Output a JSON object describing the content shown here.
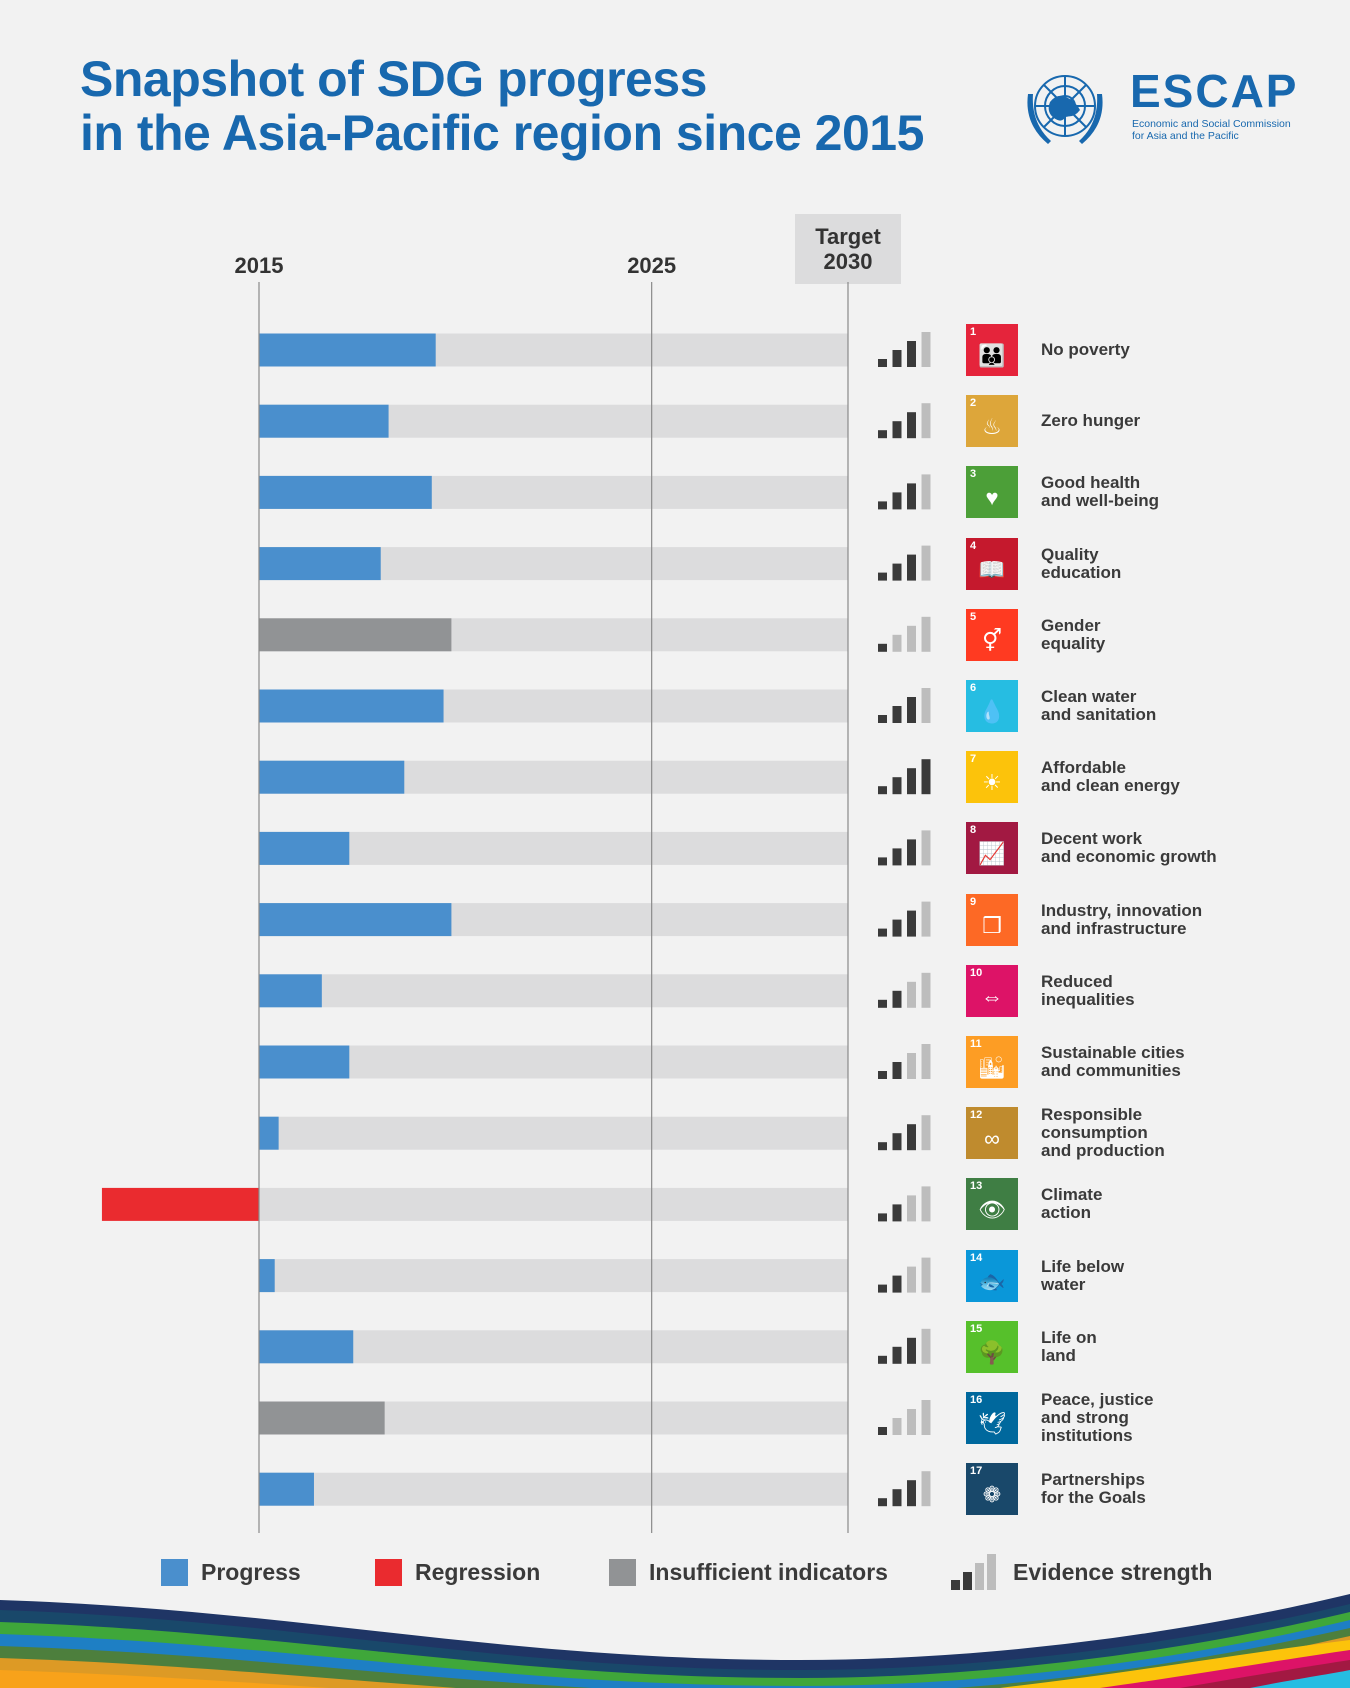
{
  "header": {
    "title_line1": "Snapshot of SDG progress",
    "title_line2": "in the Asia-Pacific region since 2015",
    "logo": {
      "icon": "un-emblem-icon",
      "name": "ESCAP",
      "sub_line1": "Economic and Social Commission",
      "sub_line2": "for Asia and the Pacific"
    }
  },
  "colors": {
    "title": "#1868ae",
    "progress": "#4a8fcd",
    "regression": "#ea2b2f",
    "insufficient": "#919395",
    "track": "#dcdcdd",
    "evidence_on": "#3a3a3a",
    "evidence_off": "#bdbdbd"
  },
  "legend": {
    "progress": "Progress",
    "regression": "Regression",
    "insufficient": "Insufficient indicators",
    "evidence": "Evidence strength"
  },
  "chart_data": {
    "type": "bar",
    "orientation": "horizontal",
    "title": "Snapshot of SDG progress in the Asia-Pacific region since 2015",
    "x_axis": {
      "min": 2015,
      "max": 2030,
      "ticks": [
        {
          "value": 2015,
          "label": "2015"
        },
        {
          "value": 2025,
          "label": "2025"
        },
        {
          "value": 2030,
          "label_line1": "Target",
          "label_line2": "2030",
          "highlight": true
        }
      ]
    },
    "value_unit": "years of progress achieved since 2015 (negative = regression)",
    "evidence_max": 4,
    "goals": [
      {
        "number": 1,
        "label": [
          "No poverty"
        ],
        "value": 4.5,
        "status": "progress",
        "evidence": 3,
        "color": "#e5243b",
        "icon": "family-icon",
        "glyph": "👪"
      },
      {
        "number": 2,
        "label": [
          "Zero hunger"
        ],
        "value": 3.3,
        "status": "progress",
        "evidence": 3,
        "color": "#dda63a",
        "icon": "food-bowl-icon",
        "glyph": "♨"
      },
      {
        "number": 3,
        "label": [
          "Good health",
          "and well-being"
        ],
        "value": 4.4,
        "status": "progress",
        "evidence": 3,
        "color": "#4c9f38",
        "icon": "heartbeat-icon",
        "glyph": "♥"
      },
      {
        "number": 4,
        "label": [
          "Quality",
          "education"
        ],
        "value": 3.1,
        "status": "progress",
        "evidence": 3,
        "color": "#c5192d",
        "icon": "book-icon",
        "glyph": "📖"
      },
      {
        "number": 5,
        "label": [
          "Gender",
          "equality"
        ],
        "value": 4.9,
        "status": "insufficient",
        "evidence": 1,
        "color": "#ff3a21",
        "icon": "gender-icon",
        "glyph": "⚥"
      },
      {
        "number": 6,
        "label": [
          "Clean water",
          "and sanitation"
        ],
        "value": 4.7,
        "status": "progress",
        "evidence": 3,
        "color": "#26bde2",
        "icon": "water-icon",
        "glyph": "💧"
      },
      {
        "number": 7,
        "label": [
          "Affordable",
          "and clean energy"
        ],
        "value": 3.7,
        "status": "progress",
        "evidence": 4,
        "color": "#fcc30b",
        "icon": "sun-icon",
        "glyph": "☀"
      },
      {
        "number": 8,
        "label": [
          "Decent work",
          "and economic growth"
        ],
        "value": 2.3,
        "status": "progress",
        "evidence": 3,
        "color": "#a21942",
        "icon": "growth-chart-icon",
        "glyph": "📈"
      },
      {
        "number": 9,
        "label": [
          "Industry, innovation",
          "and infrastructure"
        ],
        "value": 4.9,
        "status": "progress",
        "evidence": 3,
        "color": "#fd6925",
        "icon": "cubes-icon",
        "glyph": "❒"
      },
      {
        "number": 10,
        "label": [
          "Reduced",
          "inequalities"
        ],
        "value": 1.6,
        "status": "progress",
        "evidence": 2,
        "color": "#dd1367",
        "icon": "equality-icon",
        "glyph": "⇔"
      },
      {
        "number": 11,
        "label": [
          "Sustainable cities",
          "and communities"
        ],
        "value": 2.3,
        "status": "progress",
        "evidence": 2,
        "color": "#fd9d24",
        "icon": "city-icon",
        "glyph": "🏙"
      },
      {
        "number": 12,
        "label": [
          "Responsible",
          "consumption",
          "and production"
        ],
        "value": 0.5,
        "status": "progress",
        "evidence": 3,
        "color": "#bf8b2e",
        "icon": "infinity-icon",
        "glyph": "∞"
      },
      {
        "number": 13,
        "label": [
          "Climate",
          "action"
        ],
        "value": -4.0,
        "status": "regression",
        "evidence": 2,
        "color": "#3f7e44",
        "icon": "eye-globe-icon",
        "glyph": "👁"
      },
      {
        "number": 14,
        "label": [
          "Life below",
          "water"
        ],
        "value": 0.4,
        "status": "progress",
        "evidence": 2,
        "color": "#0a97d9",
        "icon": "fish-icon",
        "glyph": "🐟"
      },
      {
        "number": 15,
        "label": [
          "Life on",
          "land"
        ],
        "value": 2.4,
        "status": "progress",
        "evidence": 3,
        "color": "#56c02b",
        "icon": "tree-icon",
        "glyph": "🌳"
      },
      {
        "number": 16,
        "label": [
          "Peace, justice",
          "and strong",
          "institutions"
        ],
        "value": 3.2,
        "status": "insufficient",
        "evidence": 1,
        "color": "#00689d",
        "icon": "dove-icon",
        "glyph": "🕊"
      },
      {
        "number": 17,
        "label": [
          "Partnerships",
          "for the Goals"
        ],
        "value": 1.4,
        "status": "progress",
        "evidence": 3,
        "color": "#19486a",
        "icon": "flower-rings-icon",
        "glyph": "❁"
      }
    ]
  }
}
